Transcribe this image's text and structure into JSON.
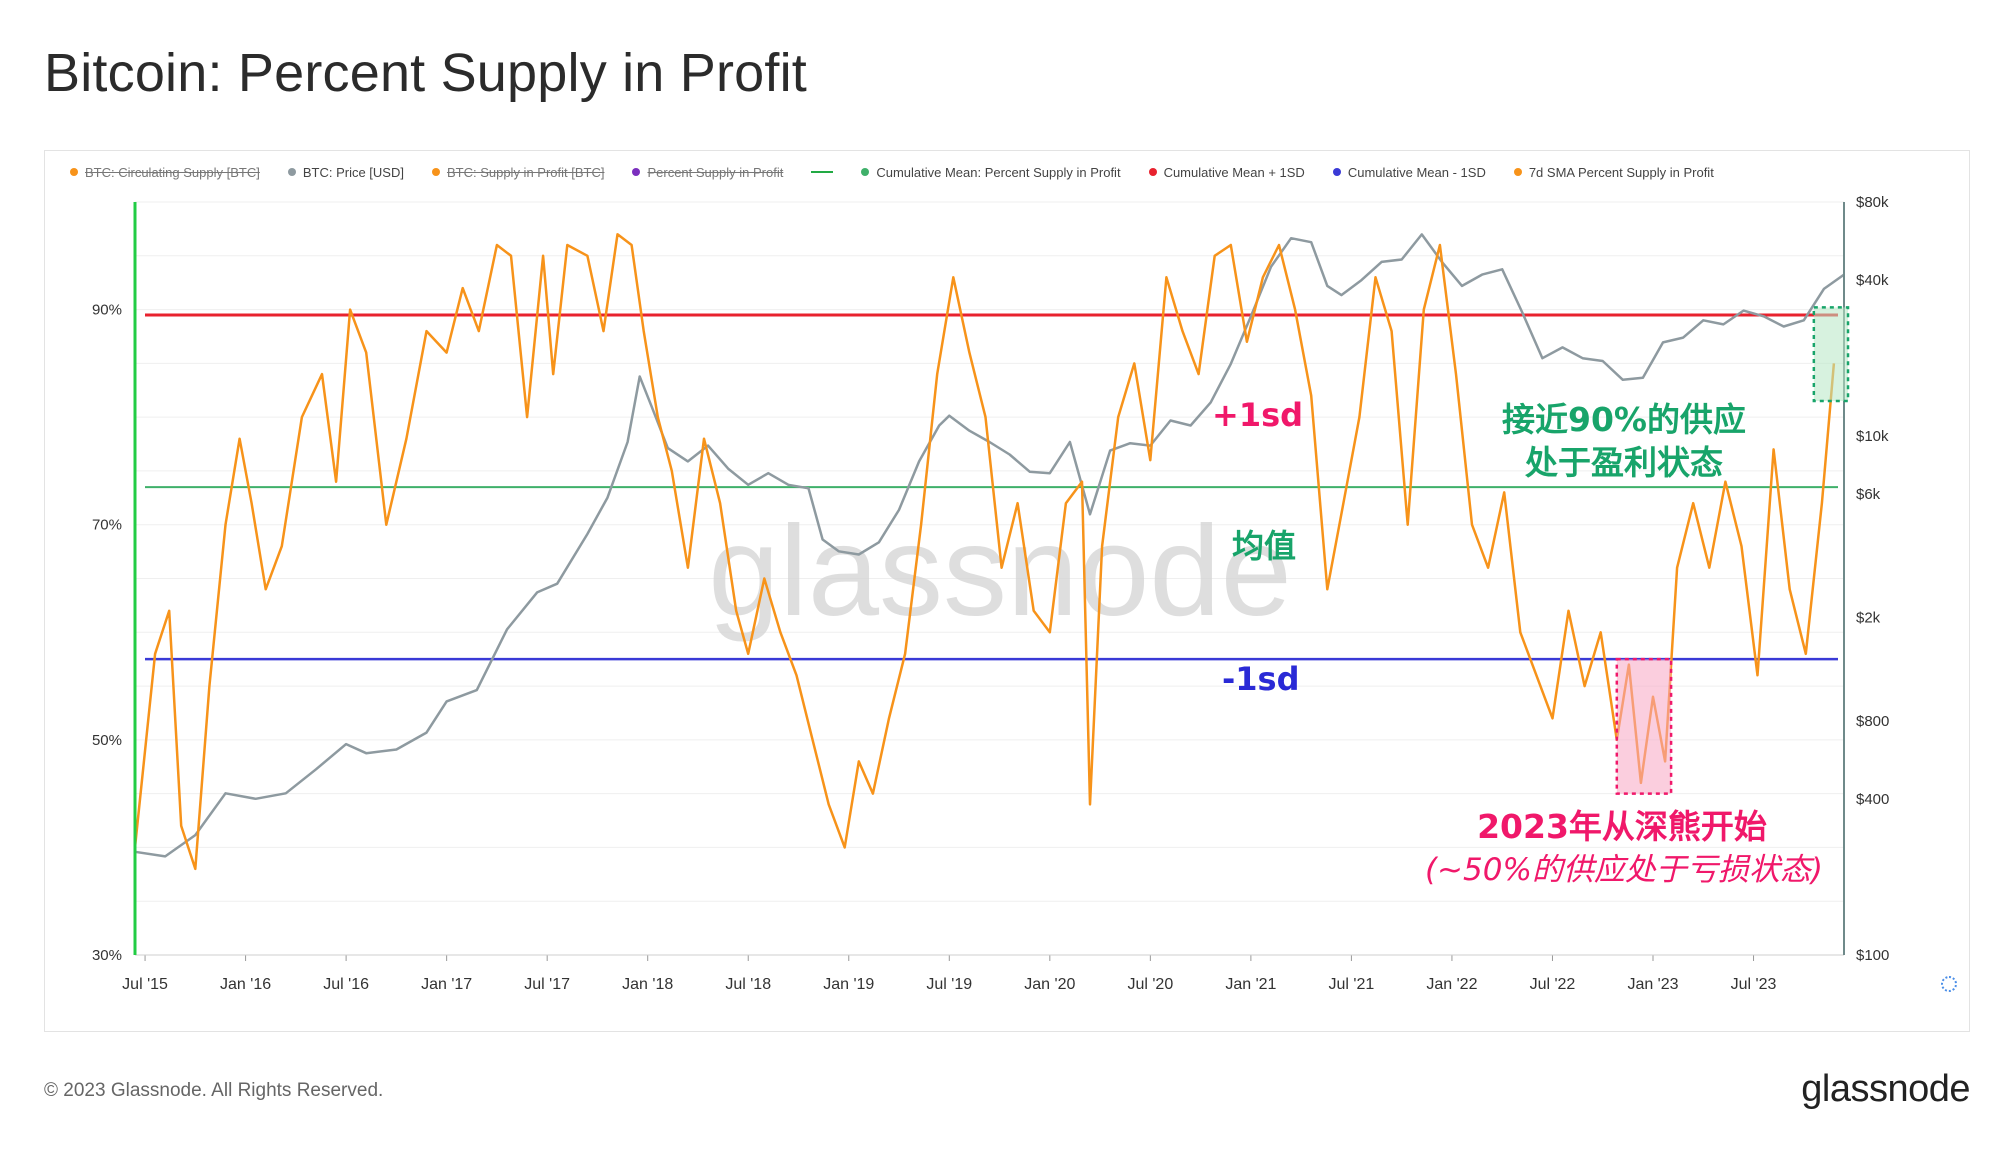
{
  "title": "Bitcoin: Percent Supply in Profit",
  "legend": [
    {
      "label": "BTC: Circulating Supply [BTC]",
      "color": "#f7931a",
      "hidden": true
    },
    {
      "label": "BTC: Price [USD]",
      "color": "#8e9aa0",
      "hidden": false
    },
    {
      "label": "BTC: Supply in Profit [BTC]",
      "color": "#f7931a",
      "hidden": true
    },
    {
      "label": "Percent Supply in Profit",
      "color": "#7b2fbe",
      "hidden": true
    },
    {
      "label": "",
      "color": "#22aa44",
      "hidden": false,
      "glyph": "line"
    },
    {
      "label": "Cumulative Mean: Percent Supply in Profit",
      "color": "#3fb06a",
      "hidden": false
    },
    {
      "label": "Cumulative Mean + 1SD",
      "color": "#e8222e",
      "hidden": false
    },
    {
      "label": "Cumulative Mean - 1SD",
      "color": "#3a3ad6",
      "hidden": false
    },
    {
      "label": "7d SMA Percent Supply in Profit",
      "color": "#f7931a",
      "hidden": false
    }
  ],
  "annotations": {
    "plus_1sd": "+1sd",
    "mean": "均值",
    "minus_1sd": "-1sd",
    "near90_line1": "接近90%的供应",
    "near90_line2": "处于盈利状态",
    "bear_line1": "2023年从深熊开始",
    "bear_line2": "(~50%的供应处于亏损状态)"
  },
  "watermark": "glassnode",
  "footer": "© 2023 Glassnode. All Rights Reserved.",
  "brand": "glassnode",
  "colors": {
    "sma": "#f7931a",
    "price": "#8e9aa0",
    "mean": "#3fb06a",
    "plus1sd": "#e8222e",
    "minus1sd": "#3a3ad6",
    "annot_green": "#18a46a",
    "annot_pink": "#f0186a"
  },
  "chart_data": {
    "type": "line",
    "x_ticks": [
      "Jul '15",
      "Jan '16",
      "Jul '16",
      "Jan '17",
      "Jul '17",
      "Jan '18",
      "Jul '18",
      "Jan '19",
      "Jul '19",
      "Jan '20",
      "Jul '20",
      "Jan '21",
      "Jul '21",
      "Jan '22",
      "Jul '22",
      "Jan '23",
      "Jul '23"
    ],
    "y_left_ticks": [
      "30%",
      "50%",
      "70%",
      "90%"
    ],
    "y_left_range": [
      30,
      100
    ],
    "y_right_ticks": [
      "$100",
      "$400",
      "$800",
      "$2k",
      "$6k",
      "$10k",
      "$40k",
      "$80k"
    ],
    "y_right_values": [
      100,
      400,
      800,
      2000,
      6000,
      10000,
      40000,
      80000
    ],
    "y_right_range": [
      100,
      80000
    ],
    "y_right_scale": "log",
    "x_range": [
      2015.45,
      2023.95
    ],
    "reference_lines": {
      "cumulative_mean": 73.5,
      "mean_plus_1sd": 89.5,
      "mean_minus_1sd": 57.5
    },
    "series": [
      {
        "name": "7d SMA Percent Supply in Profit",
        "axis": "left",
        "x": [
          2015.45,
          2015.55,
          2015.62,
          2015.68,
          2015.75,
          2015.82,
          2015.9,
          2015.97,
          2016.03,
          2016.1,
          2016.18,
          2016.28,
          2016.38,
          2016.45,
          2016.52,
          2016.6,
          2016.7,
          2016.8,
          2016.9,
          2017.0,
          2017.08,
          2017.16,
          2017.25,
          2017.32,
          2017.4,
          2017.48,
          2017.53,
          2017.6,
          2017.7,
          2017.78,
          2017.85,
          2017.92,
          2017.98,
          2018.05,
          2018.12,
          2018.2,
          2018.28,
          2018.36,
          2018.44,
          2018.5,
          2018.58,
          2018.66,
          2018.74,
          2018.82,
          2018.9,
          2018.98,
          2019.05,
          2019.12,
          2019.2,
          2019.28,
          2019.36,
          2019.44,
          2019.52,
          2019.6,
          2019.68,
          2019.76,
          2019.84,
          2019.92,
          2020.0,
          2020.08,
          2020.16,
          2020.2,
          2020.26,
          2020.34,
          2020.42,
          2020.5,
          2020.58,
          2020.66,
          2020.74,
          2020.82,
          2020.9,
          2020.98,
          2021.06,
          2021.14,
          2021.22,
          2021.3,
          2021.38,
          2021.46,
          2021.54,
          2021.62,
          2021.7,
          2021.78,
          2021.86,
          2021.94,
          2022.02,
          2022.1,
          2022.18,
          2022.26,
          2022.34,
          2022.42,
          2022.5,
          2022.58,
          2022.66,
          2022.74,
          2022.82,
          2022.88,
          2022.94,
          2023.0,
          2023.06,
          2023.12,
          2023.2,
          2023.28,
          2023.36,
          2023.44,
          2023.52,
          2023.6,
          2023.68,
          2023.76,
          2023.84,
          2023.9
        ],
        "values": [
          40,
          58,
          62,
          42,
          38,
          55,
          70,
          78,
          72,
          64,
          68,
          80,
          84,
          74,
          90,
          86,
          70,
          78,
          88,
          86,
          92,
          88,
          96,
          95,
          80,
          95,
          84,
          96,
          95,
          88,
          97,
          96,
          88,
          80,
          75,
          66,
          78,
          72,
          62,
          58,
          65,
          60,
          56,
          50,
          44,
          40,
          48,
          45,
          52,
          58,
          70,
          84,
          93,
          86,
          80,
          66,
          72,
          62,
          60,
          72,
          74,
          44,
          68,
          80,
          85,
          76,
          93,
          88,
          84,
          95,
          96,
          87,
          93,
          96,
          90,
          82,
          64,
          72,
          80,
          93,
          88,
          70,
          90,
          96,
          84,
          70,
          66,
          73,
          60,
          56,
          52,
          62,
          55,
          60,
          50,
          57,
          46,
          54,
          48,
          66,
          72,
          66,
          74,
          68,
          56,
          77,
          64,
          58,
          72,
          85
        ]
      },
      {
        "name": "BTC: Price [USD]",
        "axis": "right",
        "x": [
          2015.45,
          2015.6,
          2015.75,
          2015.9,
          2016.05,
          2016.2,
          2016.35,
          2016.5,
          2016.6,
          2016.75,
          2016.9,
          2017.0,
          2017.15,
          2017.3,
          2017.45,
          2017.55,
          2017.7,
          2017.8,
          2017.9,
          2017.96,
          2018.02,
          2018.1,
          2018.2,
          2018.3,
          2018.4,
          2018.5,
          2018.6,
          2018.7,
          2018.8,
          2018.87,
          2018.95,
          2019.05,
          2019.15,
          2019.25,
          2019.35,
          2019.45,
          2019.5,
          2019.6,
          2019.7,
          2019.8,
          2019.9,
          2020.0,
          2020.1,
          2020.2,
          2020.3,
          2020.4,
          2020.5,
          2020.6,
          2020.7,
          2020.8,
          2020.9,
          2021.0,
          2021.1,
          2021.2,
          2021.3,
          2021.38,
          2021.45,
          2021.55,
          2021.65,
          2021.75,
          2021.85,
          2021.95,
          2022.05,
          2022.15,
          2022.25,
          2022.35,
          2022.45,
          2022.55,
          2022.65,
          2022.75,
          2022.85,
          2022.95,
          2023.05,
          2023.15,
          2023.25,
          2023.35,
          2023.45,
          2023.55,
          2023.65,
          2023.75,
          2023.85,
          2023.95
        ],
        "values": [
          250,
          240,
          290,
          420,
          400,
          420,
          520,
          650,
          600,
          620,
          720,
          950,
          1050,
          1800,
          2500,
          2700,
          4200,
          5800,
          9500,
          17000,
          13000,
          9000,
          8000,
          9200,
          7500,
          6500,
          7200,
          6500,
          6300,
          4000,
          3600,
          3500,
          3900,
          5200,
          8000,
          11000,
          12000,
          10500,
          9500,
          8500,
          7300,
          7200,
          9500,
          5000,
          8800,
          9400,
          9200,
          11500,
          11000,
          13500,
          19000,
          29000,
          45000,
          58000,
          56000,
          38000,
          35000,
          40000,
          47000,
          48000,
          60000,
          47000,
          38000,
          42000,
          44000,
          30000,
          20000,
          22000,
          20000,
          19500,
          16500,
          16800,
          23000,
          24000,
          28000,
          27000,
          30500,
          29000,
          26500,
          28000,
          37000,
          42000
        ]
      }
    ]
  }
}
